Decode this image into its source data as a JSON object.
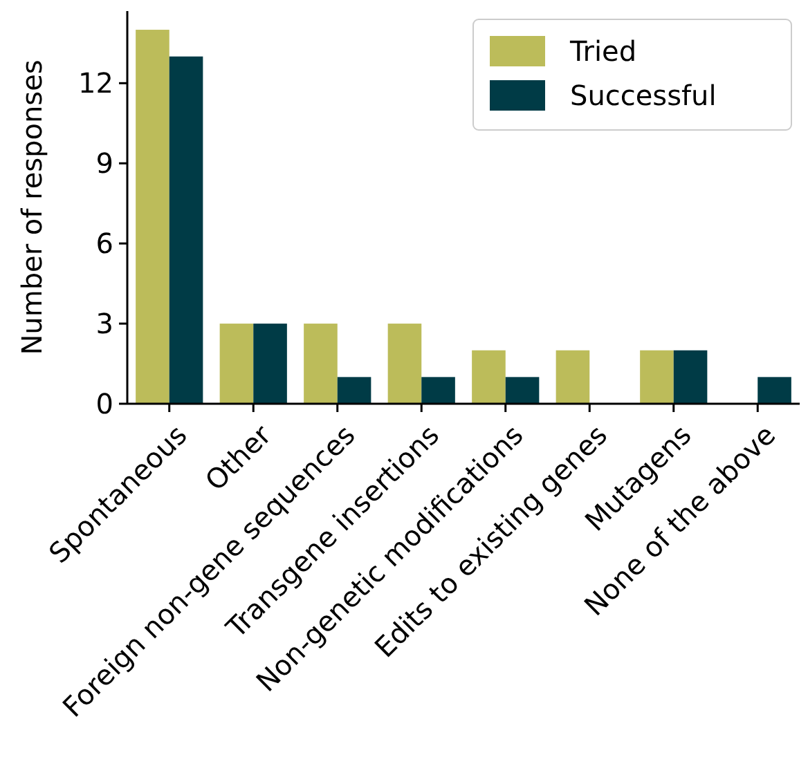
{
  "chart_data": {
    "type": "bar",
    "ylabel": "Number of responses",
    "categories": [
      "Spontaneous",
      "Other",
      "Foreign non-gene sequences",
      "Transgene insertions",
      "Non-genetic modifications",
      "Edits to existing genes",
      "Mutagens",
      "None of the above"
    ],
    "series": [
      {
        "name": "Tried",
        "color": "#bcbc5a",
        "values": [
          14,
          3,
          3,
          3,
          2,
          2,
          2,
          0
        ]
      },
      {
        "name": "Successful",
        "color": "#003b46",
        "values": [
          13,
          3,
          1,
          1,
          1,
          0,
          2,
          1
        ]
      }
    ],
    "ylim": [
      0,
      14.7
    ],
    "yticks": [
      0,
      3,
      6,
      9,
      12
    ],
    "grid": false,
    "legend": "top right"
  }
}
